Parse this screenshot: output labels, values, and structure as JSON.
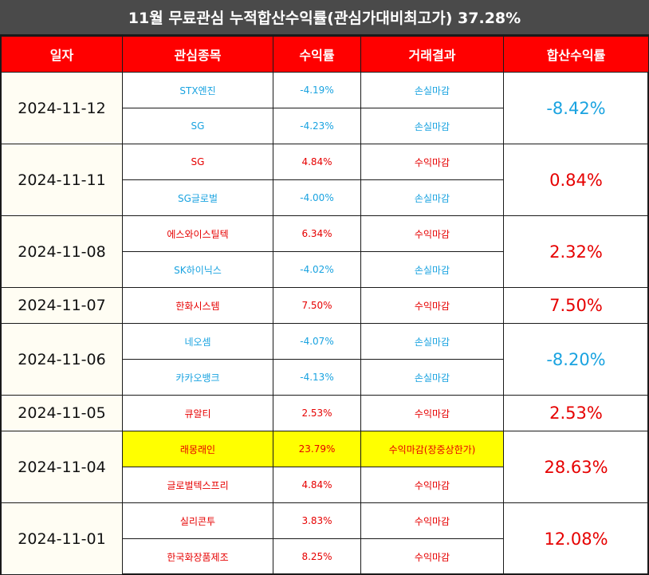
{
  "title": "11월 무료관심 누적합산수익률(관심가대비최고가) 37.28%",
  "headers": [
    "일자",
    "관심종목",
    "수익률",
    "거래결과",
    "합산수익률"
  ],
  "colors": {
    "header_bg": "#ff0000",
    "title_bg": "#4a4a4a",
    "profit": "#e60000",
    "loss": "#1aa3e0",
    "highlight": "#ffff00"
  },
  "groups": [
    {
      "date": "2024-11-12",
      "total": "-8.42%",
      "rows": [
        {
          "stock": "STX엔진",
          "rate": "-4.19%",
          "result": "손실마감"
        },
        {
          "stock": "SG",
          "rate": "-4.23%",
          "result": "손실마감"
        }
      ]
    },
    {
      "date": "2024-11-11",
      "total": "0.84%",
      "rows": [
        {
          "stock": "SG",
          "rate": "4.84%",
          "result": "수익마감"
        },
        {
          "stock": "SG글로벌",
          "rate": "-4.00%",
          "result": "손실마감"
        }
      ]
    },
    {
      "date": "2024-11-08",
      "total": "2.32%",
      "rows": [
        {
          "stock": "에스와이스틸텍",
          "rate": "6.34%",
          "result": "수익마감"
        },
        {
          "stock": "SK하이닉스",
          "rate": "-4.02%",
          "result": "손실마감"
        }
      ]
    },
    {
      "date": "2024-11-07",
      "total": "7.50%",
      "rows": [
        {
          "stock": "한화시스템",
          "rate": "7.50%",
          "result": "수익마감"
        }
      ]
    },
    {
      "date": "2024-11-06",
      "total": "-8.20%",
      "rows": [
        {
          "stock": "네오셈",
          "rate": "-4.07%",
          "result": "손실마감"
        },
        {
          "stock": "카카오뱅크",
          "rate": "-4.13%",
          "result": "손실마감"
        }
      ]
    },
    {
      "date": "2024-11-05",
      "total": "2.53%",
      "rows": [
        {
          "stock": "큐알티",
          "rate": "2.53%",
          "result": "수익마감"
        }
      ]
    },
    {
      "date": "2024-11-04",
      "total": "28.63%",
      "rows": [
        {
          "stock": "래몽래인",
          "rate": "23.79%",
          "result": "수익마감(장중상한가)",
          "highlight": true
        },
        {
          "stock": "글로벌텍스프리",
          "rate": "4.84%",
          "result": "수익마감"
        }
      ]
    },
    {
      "date": "2024-11-01",
      "total": "12.08%",
      "rows": [
        {
          "stock": "실리콘투",
          "rate": "3.83%",
          "result": "수익마감"
        },
        {
          "stock": "한국화장품제조",
          "rate": "8.25%",
          "result": "수익마감"
        }
      ]
    }
  ]
}
